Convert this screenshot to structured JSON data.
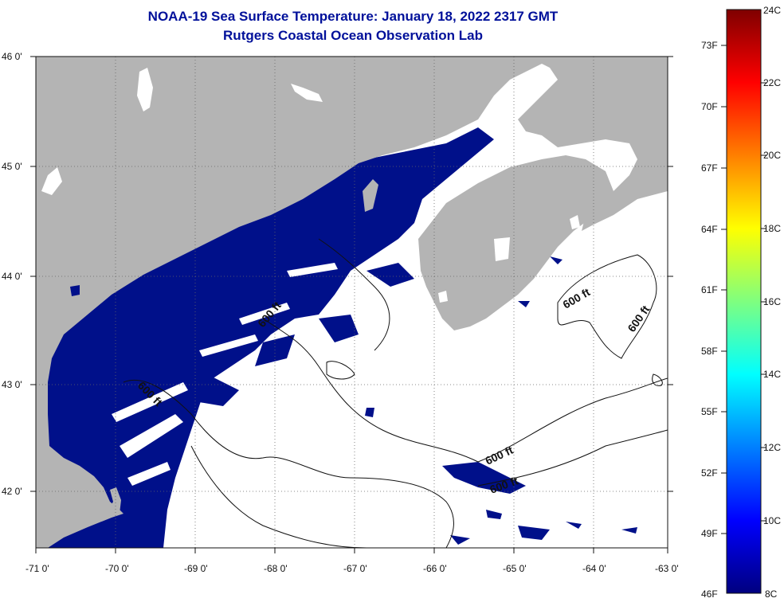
{
  "header": {
    "title_line1": "NOAA-19 Sea Surface Temperature:  January 18, 2022 2317 GMT",
    "title_line2": "Rutgers Coastal Ocean Observation Lab"
  },
  "map": {
    "lat_labels": [
      "46 0'",
      "45 0'",
      "44 0'",
      "43 0'",
      "42 0'"
    ],
    "lon_labels": [
      "-71 0'",
      "-70 0'",
      "-69 0'",
      "-68 0'",
      "-67 0'",
      "-66 0'",
      "-65 0'",
      "-64 0'",
      "-63 0'"
    ],
    "contour_labels": [
      "600 ft",
      "600 ft",
      "600 ft",
      "600 ft",
      "600 ft",
      "600 ft"
    ]
  },
  "colorbar": {
    "fahrenheit_labels": [
      "73F",
      "70F",
      "67F",
      "64F",
      "61F",
      "58F",
      "55F",
      "52F",
      "49F",
      "46F"
    ],
    "celsius_labels": [
      "24C",
      "22C",
      "20C",
      "18C",
      "16C",
      "14C",
      "12C",
      "10C",
      "8C"
    ]
  },
  "colors": {
    "land": "#b4b4b4",
    "cold_water": "#00108a",
    "ocean_nodata": "#ffffff",
    "title": "#00109a"
  }
}
